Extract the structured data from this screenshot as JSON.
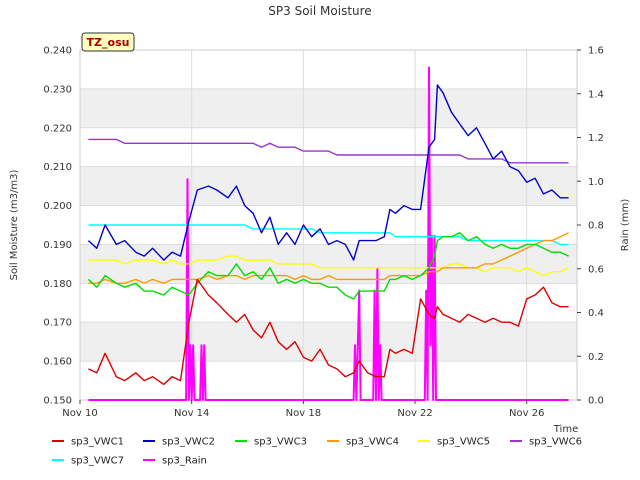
{
  "chart_data": {
    "type": "line",
    "title": "SP3 Soil Moisture",
    "badge": "TZ_osu",
    "xlabel": "Time",
    "ylabel": "Soil Moisture (m3/m3)",
    "y2label": "Rain (mm)",
    "ylim": [
      0.15,
      0.24
    ],
    "y2lim": [
      0.0,
      1.6
    ],
    "xlim": [
      10,
      27.8
    ],
    "x_ticks": [
      10,
      14,
      18,
      22,
      26
    ],
    "x_tick_labels": [
      "Nov 10",
      "Nov 14",
      "Nov 18",
      "Nov 22",
      "Nov 26"
    ],
    "y_ticks": [
      "0.150",
      "0.160",
      "0.170",
      "0.180",
      "0.190",
      "0.200",
      "0.210",
      "0.220",
      "0.230",
      "0.240"
    ],
    "y2_ticks": [
      "0.0",
      "0.2",
      "0.4",
      "0.6",
      "0.8",
      "1.0",
      "1.2",
      "1.4",
      "1.6"
    ],
    "grid": true,
    "legend_position": "bottom",
    "series": [
      {
        "name": "sp3_VWC1",
        "color": "#dd0000",
        "axis": "left",
        "x": [
          10.3,
          10.6,
          10.9,
          11.3,
          11.6,
          12.0,
          12.3,
          12.6,
          13.0,
          13.3,
          13.6,
          13.9,
          14.2,
          14.6,
          14.9,
          15.3,
          15.6,
          15.9,
          16.2,
          16.5,
          16.8,
          17.1,
          17.4,
          17.7,
          18.0,
          18.3,
          18.6,
          18.9,
          19.2,
          19.5,
          19.8,
          20.0,
          20.3,
          20.6,
          20.9,
          21.1,
          21.3,
          21.6,
          21.9,
          22.2,
          22.5,
          22.7,
          22.8,
          23.0,
          23.3,
          23.6,
          23.9,
          24.2,
          24.5,
          24.8,
          25.1,
          25.4,
          25.7,
          26.0,
          26.3,
          26.6,
          26.9,
          27.2,
          27.5
        ],
        "y": [
          0.158,
          0.157,
          0.162,
          0.156,
          0.155,
          0.157,
          0.155,
          0.156,
          0.154,
          0.156,
          0.155,
          0.17,
          0.181,
          0.177,
          0.175,
          0.172,
          0.17,
          0.172,
          0.168,
          0.166,
          0.17,
          0.165,
          0.163,
          0.165,
          0.161,
          0.16,
          0.163,
          0.159,
          0.158,
          0.156,
          0.157,
          0.16,
          0.157,
          0.156,
          0.156,
          0.163,
          0.162,
          0.163,
          0.162,
          0.176,
          0.172,
          0.171,
          0.174,
          0.172,
          0.171,
          0.17,
          0.172,
          0.171,
          0.17,
          0.171,
          0.17,
          0.17,
          0.169,
          0.176,
          0.177,
          0.179,
          0.175,
          0.174,
          0.174
        ]
      },
      {
        "name": "sp3_VWC2",
        "color": "#0000cc",
        "axis": "left",
        "x": [
          10.3,
          10.6,
          10.9,
          11.3,
          11.6,
          12.0,
          12.3,
          12.6,
          13.0,
          13.3,
          13.6,
          13.9,
          14.2,
          14.6,
          14.9,
          15.3,
          15.6,
          15.9,
          16.2,
          16.5,
          16.8,
          17.1,
          17.4,
          17.7,
          18.0,
          18.3,
          18.6,
          18.9,
          19.2,
          19.5,
          19.8,
          20.0,
          20.3,
          20.6,
          20.9,
          21.1,
          21.3,
          21.6,
          21.9,
          22.2,
          22.5,
          22.7,
          22.8,
          23.0,
          23.3,
          23.6,
          23.9,
          24.2,
          24.5,
          24.8,
          25.1,
          25.4,
          25.7,
          26.0,
          26.3,
          26.6,
          26.9,
          27.2,
          27.5
        ],
        "y": [
          0.191,
          0.189,
          0.195,
          0.19,
          0.191,
          0.188,
          0.187,
          0.189,
          0.186,
          0.188,
          0.187,
          0.196,
          0.204,
          0.205,
          0.204,
          0.202,
          0.205,
          0.2,
          0.198,
          0.193,
          0.197,
          0.19,
          0.193,
          0.19,
          0.195,
          0.192,
          0.194,
          0.19,
          0.191,
          0.19,
          0.186,
          0.191,
          0.191,
          0.191,
          0.192,
          0.199,
          0.198,
          0.2,
          0.199,
          0.199,
          0.215,
          0.217,
          0.231,
          0.229,
          0.224,
          0.221,
          0.218,
          0.22,
          0.216,
          0.212,
          0.214,
          0.21,
          0.209,
          0.206,
          0.207,
          0.203,
          0.204,
          0.202,
          0.202
        ]
      },
      {
        "name": "sp3_VWC3",
        "color": "#00dd00",
        "axis": "left",
        "x": [
          10.3,
          10.6,
          10.9,
          11.3,
          11.6,
          12.0,
          12.3,
          12.6,
          13.0,
          13.3,
          13.6,
          13.9,
          14.2,
          14.6,
          14.9,
          15.3,
          15.6,
          15.9,
          16.2,
          16.5,
          16.8,
          17.1,
          17.4,
          17.7,
          18.0,
          18.3,
          18.6,
          18.9,
          19.2,
          19.5,
          19.8,
          20.0,
          20.3,
          20.6,
          20.9,
          21.1,
          21.3,
          21.6,
          21.9,
          22.2,
          22.5,
          22.7,
          22.8,
          23.0,
          23.3,
          23.6,
          23.9,
          24.2,
          24.5,
          24.8,
          25.1,
          25.4,
          25.7,
          26.0,
          26.3,
          26.6,
          26.9,
          27.2,
          27.5
        ],
        "y": [
          0.181,
          0.179,
          0.182,
          0.18,
          0.179,
          0.18,
          0.178,
          0.178,
          0.177,
          0.179,
          0.178,
          0.177,
          0.18,
          0.183,
          0.182,
          0.182,
          0.185,
          0.182,
          0.183,
          0.181,
          0.184,
          0.18,
          0.181,
          0.18,
          0.181,
          0.18,
          0.18,
          0.179,
          0.179,
          0.177,
          0.176,
          0.178,
          0.178,
          0.178,
          0.178,
          0.181,
          0.181,
          0.182,
          0.181,
          0.182,
          0.184,
          0.187,
          0.191,
          0.192,
          0.192,
          0.193,
          0.191,
          0.192,
          0.19,
          0.189,
          0.19,
          0.189,
          0.189,
          0.19,
          0.19,
          0.189,
          0.188,
          0.188,
          0.187
        ]
      },
      {
        "name": "sp3_VWC4",
        "color": "#ff9900",
        "axis": "left",
        "x": [
          10.3,
          10.6,
          10.9,
          11.3,
          11.6,
          12.0,
          12.3,
          12.6,
          13.0,
          13.3,
          13.6,
          13.9,
          14.2,
          14.6,
          14.9,
          15.3,
          15.6,
          15.9,
          16.2,
          16.5,
          16.8,
          17.1,
          17.4,
          17.7,
          18.0,
          18.3,
          18.6,
          18.9,
          19.2,
          19.5,
          19.8,
          20.0,
          20.3,
          20.6,
          20.9,
          21.1,
          21.3,
          21.6,
          21.9,
          22.2,
          22.5,
          22.7,
          22.8,
          23.0,
          23.3,
          23.6,
          23.9,
          24.2,
          24.5,
          24.8,
          25.1,
          25.4,
          25.7,
          26.0,
          26.3,
          26.6,
          26.9,
          27.2,
          27.5
        ],
        "y": [
          0.18,
          0.18,
          0.181,
          0.18,
          0.18,
          0.181,
          0.18,
          0.181,
          0.18,
          0.181,
          0.181,
          0.181,
          0.181,
          0.182,
          0.181,
          0.182,
          0.182,
          0.181,
          0.182,
          0.182,
          0.182,
          0.182,
          0.182,
          0.181,
          0.182,
          0.181,
          0.181,
          0.182,
          0.181,
          0.181,
          0.181,
          0.181,
          0.181,
          0.181,
          0.181,
          0.182,
          0.182,
          0.182,
          0.182,
          0.182,
          0.183,
          0.183,
          0.183,
          0.184,
          0.184,
          0.184,
          0.184,
          0.184,
          0.185,
          0.185,
          0.186,
          0.187,
          0.188,
          0.189,
          0.19,
          0.191,
          0.191,
          0.192,
          0.193
        ]
      },
      {
        "name": "sp3_VWC5",
        "color": "#ffff00",
        "axis": "left",
        "x": [
          10.3,
          10.6,
          10.9,
          11.3,
          11.6,
          12.0,
          12.3,
          12.6,
          13.0,
          13.3,
          13.6,
          13.9,
          14.2,
          14.6,
          14.9,
          15.3,
          15.6,
          15.9,
          16.2,
          16.5,
          16.8,
          17.1,
          17.4,
          17.7,
          18.0,
          18.3,
          18.6,
          18.9,
          19.2,
          19.5,
          19.8,
          20.0,
          20.3,
          20.6,
          20.9,
          21.1,
          21.3,
          21.6,
          21.9,
          22.2,
          22.5,
          22.7,
          22.8,
          23.0,
          23.3,
          23.6,
          23.9,
          24.2,
          24.5,
          24.8,
          25.1,
          25.4,
          25.7,
          26.0,
          26.3,
          26.6,
          26.9,
          27.2,
          27.5
        ],
        "y": [
          0.186,
          0.186,
          0.186,
          0.186,
          0.185,
          0.186,
          0.186,
          0.186,
          0.185,
          0.186,
          0.185,
          0.185,
          0.186,
          0.186,
          0.186,
          0.187,
          0.187,
          0.186,
          0.186,
          0.186,
          0.186,
          0.185,
          0.185,
          0.185,
          0.185,
          0.185,
          0.184,
          0.184,
          0.184,
          0.184,
          0.184,
          0.184,
          0.184,
          0.184,
          0.184,
          0.184,
          0.184,
          0.184,
          0.184,
          0.184,
          0.184,
          0.184,
          0.184,
          0.184,
          0.185,
          0.185,
          0.184,
          0.184,
          0.183,
          0.184,
          0.184,
          0.184,
          0.183,
          0.184,
          0.183,
          0.182,
          0.183,
          0.183,
          0.184
        ]
      },
      {
        "name": "sp3_VWC6",
        "color": "#9933cc",
        "axis": "left",
        "x": [
          10.3,
          10.6,
          10.9,
          11.3,
          11.6,
          12.0,
          12.3,
          12.6,
          13.0,
          13.3,
          13.6,
          13.9,
          14.2,
          14.6,
          14.9,
          15.3,
          15.6,
          15.9,
          16.2,
          16.5,
          16.8,
          17.1,
          17.4,
          17.7,
          18.0,
          18.3,
          18.6,
          18.9,
          19.2,
          19.5,
          19.8,
          20.0,
          20.3,
          20.6,
          20.9,
          21.1,
          21.3,
          21.6,
          21.9,
          22.2,
          22.5,
          22.7,
          22.8,
          23.0,
          23.3,
          23.6,
          23.9,
          24.2,
          24.5,
          24.8,
          25.1,
          25.4,
          25.7,
          26.0,
          26.3,
          26.6,
          26.9,
          27.2,
          27.5
        ],
        "y": [
          0.217,
          0.217,
          0.217,
          0.217,
          0.216,
          0.216,
          0.216,
          0.216,
          0.216,
          0.216,
          0.216,
          0.216,
          0.216,
          0.216,
          0.216,
          0.216,
          0.216,
          0.216,
          0.216,
          0.215,
          0.216,
          0.215,
          0.215,
          0.215,
          0.214,
          0.214,
          0.214,
          0.214,
          0.213,
          0.213,
          0.213,
          0.213,
          0.213,
          0.213,
          0.213,
          0.213,
          0.213,
          0.213,
          0.213,
          0.213,
          0.213,
          0.213,
          0.213,
          0.213,
          0.213,
          0.213,
          0.212,
          0.212,
          0.212,
          0.212,
          0.212,
          0.211,
          0.211,
          0.211,
          0.211,
          0.211,
          0.211,
          0.211,
          0.211
        ]
      },
      {
        "name": "sp3_VWC7",
        "color": "#00ffff",
        "axis": "left",
        "x": [
          10.3,
          10.6,
          10.9,
          11.3,
          11.6,
          12.0,
          12.3,
          12.6,
          13.0,
          13.3,
          13.6,
          13.9,
          14.2,
          14.6,
          14.9,
          15.3,
          15.6,
          15.9,
          16.2,
          16.5,
          16.8,
          17.1,
          17.4,
          17.7,
          18.0,
          18.3,
          18.6,
          18.9,
          19.2,
          19.5,
          19.8,
          20.0,
          20.3,
          20.6,
          20.9,
          21.1,
          21.3,
          21.6,
          21.9,
          22.2,
          22.5,
          22.7,
          22.8,
          23.0,
          23.3,
          23.6,
          23.9,
          24.2,
          24.5,
          24.8,
          25.1,
          25.4,
          25.7,
          26.0,
          26.3,
          26.6,
          26.9,
          27.2,
          27.5
        ],
        "y": [
          0.195,
          0.195,
          0.195,
          0.195,
          0.195,
          0.195,
          0.195,
          0.195,
          0.195,
          0.195,
          0.195,
          0.195,
          0.195,
          0.195,
          0.195,
          0.195,
          0.195,
          0.195,
          0.194,
          0.194,
          0.194,
          0.194,
          0.194,
          0.194,
          0.194,
          0.194,
          0.193,
          0.193,
          0.193,
          0.193,
          0.193,
          0.193,
          0.193,
          0.193,
          0.193,
          0.193,
          0.192,
          0.192,
          0.192,
          0.192,
          0.192,
          0.192,
          0.192,
          0.192,
          0.192,
          0.192,
          0.191,
          0.191,
          0.191,
          0.191,
          0.191,
          0.191,
          0.191,
          0.191,
          0.191,
          0.191,
          0.191,
          0.19,
          0.19
        ]
      },
      {
        "name": "sp3_Rain",
        "color": "#ff00ff",
        "axis": "right",
        "x": [
          10.3,
          13.8,
          13.85,
          13.9,
          13.95,
          14.0,
          14.05,
          14.1,
          14.15,
          14.3,
          14.35,
          14.4,
          14.45,
          14.5,
          19.8,
          19.85,
          19.9,
          19.95,
          20.0,
          20.05,
          20.1,
          20.15,
          20.5,
          20.55,
          20.6,
          20.65,
          20.7,
          20.75,
          20.8,
          20.85,
          22.35,
          22.4,
          22.45,
          22.5,
          22.55,
          22.6,
          22.65,
          22.7,
          22.75,
          22.8,
          22.85,
          27.5
        ],
        "y": [
          0.0,
          0.0,
          1.01,
          0.0,
          0.25,
          0.0,
          0.25,
          0.0,
          0.0,
          0.0,
          0.25,
          0.0,
          0.25,
          0.0,
          0.0,
          0.25,
          0.0,
          0.25,
          0.5,
          0.0,
          0.0,
          0.0,
          0.0,
          0.5,
          0.0,
          0.6,
          0.0,
          0.25,
          0.0,
          0.0,
          0.0,
          0.5,
          0.0,
          1.52,
          0.25,
          0.75,
          0.0,
          0.75,
          0.0,
          0.0,
          0.0,
          0.0
        ]
      }
    ]
  }
}
